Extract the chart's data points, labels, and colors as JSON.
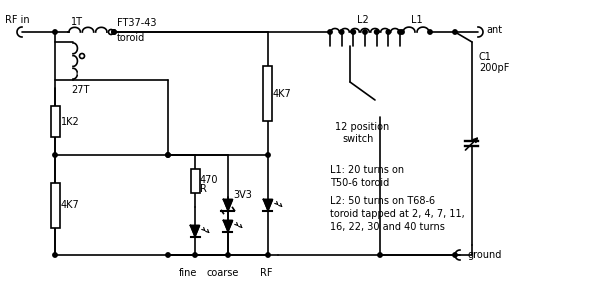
{
  "background": "#ffffff",
  "line_color": "#000000",
  "line_width": 1.2,
  "labels": {
    "rf_in": "RF in",
    "ant": "ant",
    "ground": "ground",
    "ft37": "FT37-43",
    "toroid": "toroid",
    "1T": "1T",
    "27T": "27T",
    "1K2": "1K2",
    "4K7_left": "4K7",
    "470R": "470",
    "R": "R",
    "3V3": "3V3",
    "4K7_right": "4K7",
    "L2": "L2",
    "L1": "L1",
    "C1": "C1",
    "200pF": "200pF",
    "12pos": "12 position",
    "switch_lbl": "switch",
    "fine": "fine",
    "coarse": "coarse",
    "RF": "RF",
    "notes1": "L1: 20 turns on",
    "notes2": "T50-6 toroid",
    "notes3": "L2: 50 turns on T68-6",
    "notes4": "toroid tapped at 2, 4, 7, 11,",
    "notes5": "16, 22, 30 and 40 turns"
  }
}
